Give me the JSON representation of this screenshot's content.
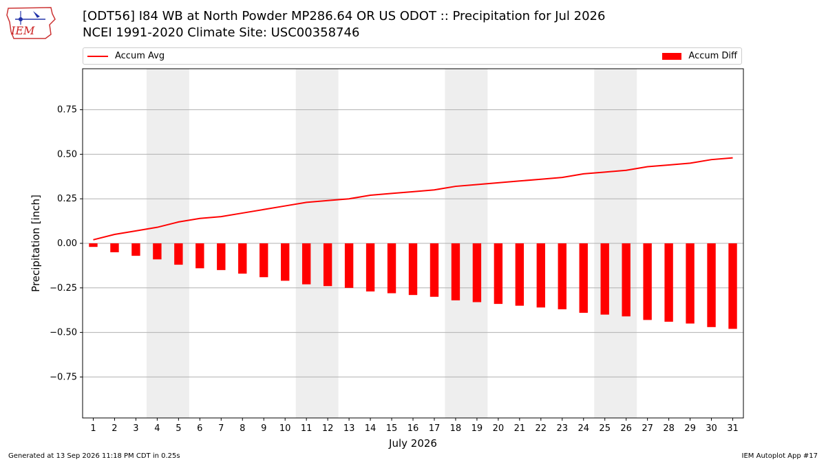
{
  "header": {
    "title_line1": "[ODT56] I84 WB at North Powder MP286.64  OR US ODOT :: Precipitation for Jul 2026",
    "title_line2": "NCEI 1991-2020 Climate Site: USC00358746",
    "logo_text": "IEM"
  },
  "legend": {
    "line_label": "Accum Avg",
    "bar_label": "Accum Diff"
  },
  "footer": {
    "left": "Generated at 13 Sep 2026 11:18 PM CDT in 0.25s",
    "right": "IEM Autoplot App #17"
  },
  "colors": {
    "series": "#ff0000",
    "weekend_band": "#eeeeee",
    "grid": "#b0b0b0"
  },
  "chart_data": {
    "type": "bar",
    "xlabel": "July 2026",
    "ylabel": "Precipitation [inch]",
    "ylim": [
      -0.98,
      0.98
    ],
    "yticks": [
      -0.75,
      -0.5,
      -0.25,
      0.0,
      0.25,
      0.5,
      0.75
    ],
    "ytick_labels": [
      "−0.75",
      "−0.50",
      "−0.25",
      "0.00",
      "0.25",
      "0.50",
      "0.75"
    ],
    "x": [
      1,
      2,
      3,
      4,
      5,
      6,
      7,
      8,
      9,
      10,
      11,
      12,
      13,
      14,
      15,
      16,
      17,
      18,
      19,
      20,
      21,
      22,
      23,
      24,
      25,
      26,
      27,
      28,
      29,
      30,
      31
    ],
    "grid": "horizontal",
    "legend_position": "top",
    "weekend_bands": [
      [
        4,
        5
      ],
      [
        11,
        12
      ],
      [
        18,
        19
      ],
      [
        25,
        26
      ]
    ],
    "series": [
      {
        "name": "Accum Avg",
        "type": "line",
        "values": [
          0.02,
          0.05,
          0.07,
          0.09,
          0.12,
          0.14,
          0.15,
          0.17,
          0.19,
          0.21,
          0.23,
          0.24,
          0.25,
          0.27,
          0.28,
          0.29,
          0.3,
          0.32,
          0.33,
          0.34,
          0.35,
          0.36,
          0.37,
          0.39,
          0.4,
          0.41,
          0.43,
          0.44,
          0.45,
          0.47,
          0.48
        ]
      },
      {
        "name": "Accum Diff",
        "type": "bar",
        "values": [
          -0.02,
          -0.05,
          -0.07,
          -0.09,
          -0.12,
          -0.14,
          -0.15,
          -0.17,
          -0.19,
          -0.21,
          -0.23,
          -0.24,
          -0.25,
          -0.27,
          -0.28,
          -0.29,
          -0.3,
          -0.32,
          -0.33,
          -0.34,
          -0.35,
          -0.36,
          -0.37,
          -0.39,
          -0.4,
          -0.41,
          -0.43,
          -0.44,
          -0.45,
          -0.47,
          -0.48
        ]
      }
    ]
  }
}
